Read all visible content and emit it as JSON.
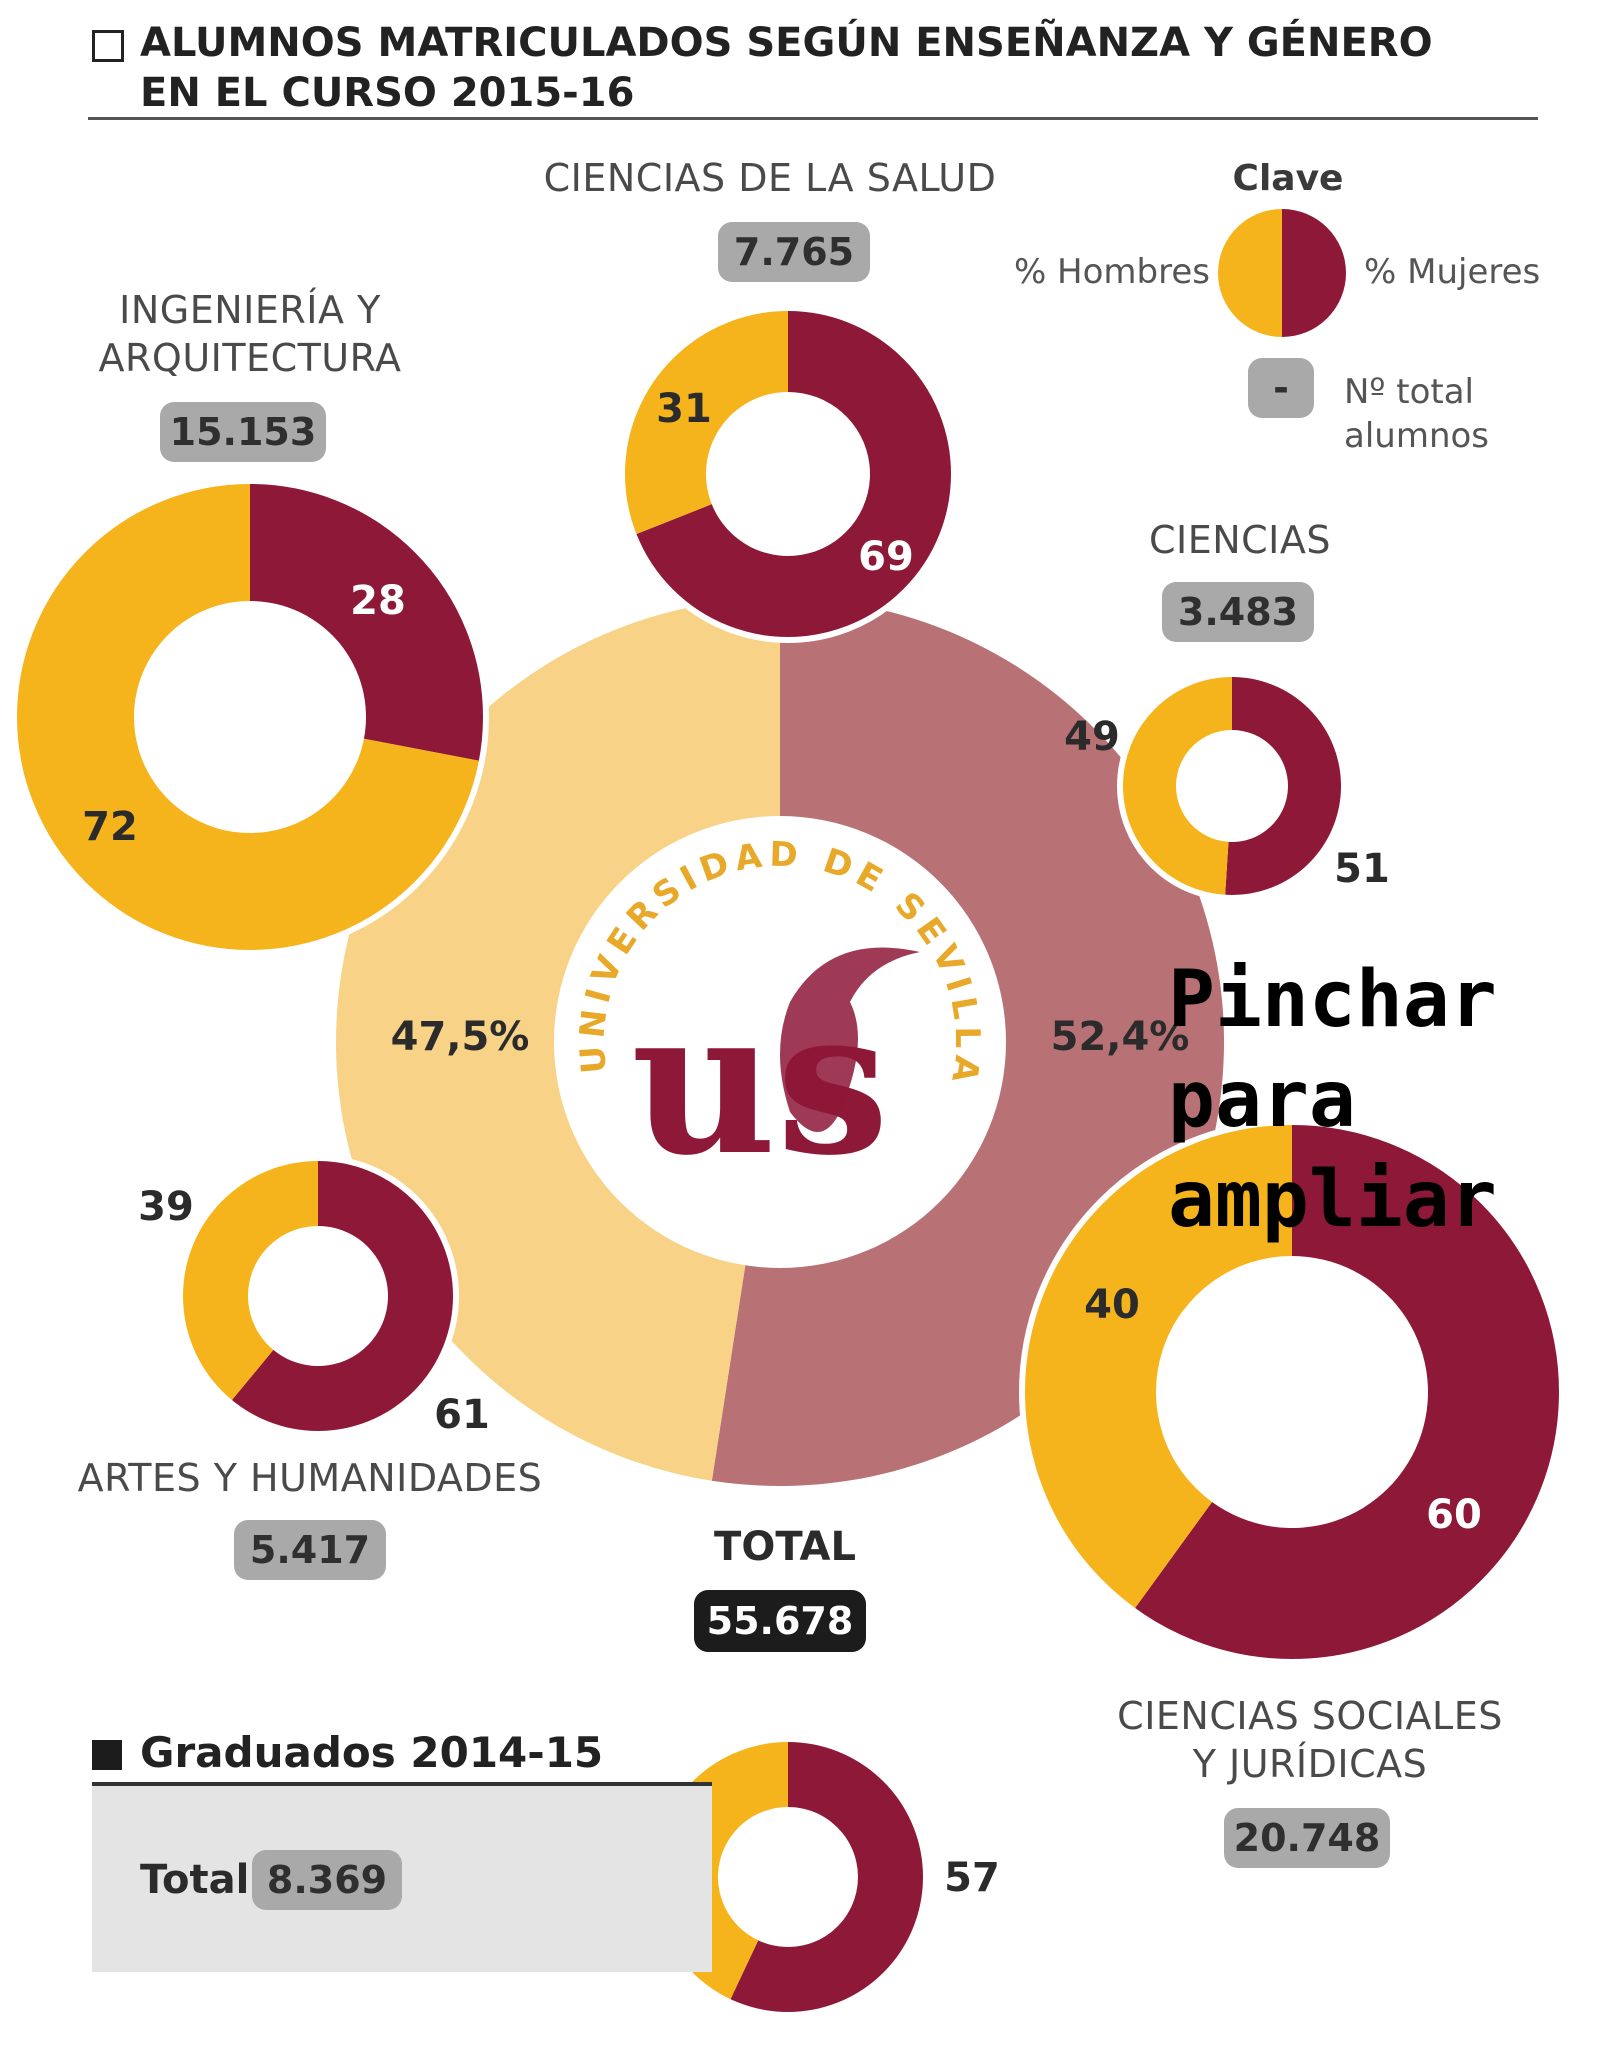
{
  "title": {
    "line1": "ALUMNOS MATRICULADOS SEGÚN ENSEÑANZA Y GÉNERO",
    "line2": "EN EL CURSO 2015-16"
  },
  "key": {
    "title": "Clave",
    "men_label": "% Hombres",
    "women_label": "% Mujeres",
    "badge_symbol": "-",
    "total_label_line1": "Nº total",
    "total_label_line2": "alumnos"
  },
  "colors": {
    "hombres": "#f5b41c",
    "mujeres": "#8e1838",
    "center_hombres": "#f8d387",
    "center_mujeres": "#b87276",
    "badge": "#a9a9a9",
    "badge_dark": "#1c1c1c"
  },
  "center_logo": {
    "arc_text": "UNIVERSIDAD DE SEVILLA",
    "letters": "us"
  },
  "overlay_text": {
    "line1": "Pinchar",
    "line2": "para",
    "line3": "ampliar"
  },
  "graduados": {
    "title": "Graduados 2014-15",
    "total_label": "Total",
    "total_value": "8.369"
  },
  "chart_data": {
    "type": "pie",
    "title": "ALUMNOS MATRICULADOS SEGÚN ENSEÑANZA Y GÉNERO EN EL CURSO 2015-16",
    "series_labels": [
      "% Hombres",
      "% Mujeres"
    ],
    "center": {
      "name": "TOTAL",
      "total": "55.678",
      "hombres_label": "47,5%",
      "mujeres_label": "52,4%",
      "hombres": 47.5,
      "mujeres": 52.4
    },
    "categories": [
      {
        "name_line1": "CIENCIAS DE LA SALUD",
        "name_line2": "",
        "total": "7.765",
        "hombres": 31,
        "mujeres": 69
      },
      {
        "name_line1": "INGENIERÍA Y",
        "name_line2": "ARQUITECTURA",
        "total": "15.153",
        "hombres": 72,
        "mujeres": 28
      },
      {
        "name_line1": "CIENCIAS",
        "name_line2": "",
        "total": "3.483",
        "hombres": 49,
        "mujeres": 51
      },
      {
        "name_line1": "ARTES Y HUMANIDADES",
        "name_line2": "",
        "total": "5.417",
        "hombres": 39,
        "mujeres": 61
      },
      {
        "name_line1": "CIENCIAS SOCIALES",
        "name_line2": "Y JURÍDICAS",
        "total": "20.748",
        "hombres": 40,
        "mujeres": 60
      }
    ],
    "graduados": {
      "name": "Graduados 2014-15",
      "total": "8.369",
      "hombres": 43,
      "mujeres": 57
    }
  }
}
